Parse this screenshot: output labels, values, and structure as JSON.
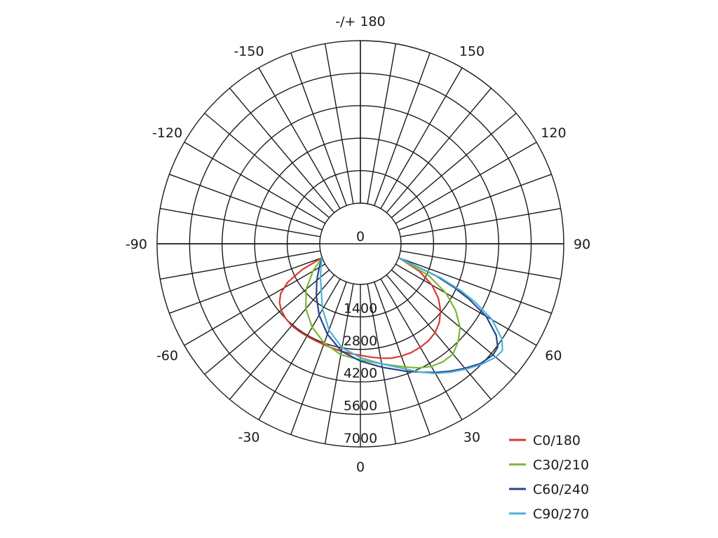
{
  "chart_data": {
    "type": "polar",
    "angle_labels": [
      {
        "angle": 180,
        "text": "-/+ 180"
      },
      {
        "angle": 150,
        "text": "150"
      },
      {
        "angle": -150,
        "text": "-150"
      },
      {
        "angle": 120,
        "text": "120"
      },
      {
        "angle": -120,
        "text": "-120"
      },
      {
        "angle": 90,
        "text": "90"
      },
      {
        "angle": -90,
        "text": "-90"
      },
      {
        "angle": 60,
        "text": "60"
      },
      {
        "angle": -60,
        "text": "-60"
      },
      {
        "angle": 30,
        "text": "30"
      },
      {
        "angle": -30,
        "text": "-30"
      },
      {
        "angle": 0,
        "text": "0"
      }
    ],
    "radial_labels": [
      "0",
      "1400",
      "2800",
      "4200",
      "5600",
      "7000"
    ],
    "radial_max": 7000,
    "spoke_step_deg": 10,
    "series": [
      {
        "name": "C0/180",
        "color": "#d63a32",
        "points": [
          [
            -70,
            20
          ],
          [
            -66,
            1000
          ],
          [
            -62,
            1800
          ],
          [
            -58,
            2300
          ],
          [
            -54,
            2550
          ],
          [
            -50,
            2700
          ],
          [
            -45,
            2800
          ],
          [
            -40,
            2850
          ],
          [
            -35,
            2850
          ],
          [
            -30,
            2850
          ],
          [
            -25,
            2850
          ],
          [
            -20,
            2870
          ],
          [
            -15,
            2900
          ],
          [
            -10,
            2950
          ],
          [
            -5,
            3000
          ],
          [
            0,
            3050
          ],
          [
            5,
            3150
          ],
          [
            10,
            3250
          ],
          [
            15,
            3350
          ],
          [
            20,
            3400
          ],
          [
            25,
            3420
          ],
          [
            30,
            3400
          ],
          [
            35,
            3350
          ],
          [
            40,
            3250
          ],
          [
            45,
            3050
          ],
          [
            50,
            2750
          ],
          [
            55,
            2350
          ],
          [
            60,
            1800
          ],
          [
            65,
            1050
          ],
          [
            70,
            20
          ]
        ]
      },
      {
        "name": "C30/210",
        "color": "#7ab733",
        "points": [
          [
            -70,
            20
          ],
          [
            -60,
            600
          ],
          [
            -50,
            1300
          ],
          [
            -40,
            1900
          ],
          [
            -30,
            2400
          ],
          [
            -20,
            2800
          ],
          [
            -10,
            3100
          ],
          [
            0,
            3250
          ],
          [
            10,
            3500
          ],
          [
            20,
            3900
          ],
          [
            25,
            4150
          ],
          [
            30,
            4350
          ],
          [
            35,
            4450
          ],
          [
            40,
            4450
          ],
          [
            45,
            4200
          ],
          [
            50,
            3850
          ],
          [
            55,
            3250
          ],
          [
            60,
            2500
          ],
          [
            65,
            1500
          ],
          [
            70,
            20
          ]
        ]
      },
      {
        "name": "C60/240",
        "color": "#24478c",
        "points": [
          [
            -70,
            20
          ],
          [
            -60,
            300
          ],
          [
            -50,
            700
          ],
          [
            -40,
            1200
          ],
          [
            -30,
            1800
          ],
          [
            -20,
            2400
          ],
          [
            -10,
            2950
          ],
          [
            0,
            3300
          ],
          [
            10,
            3650
          ],
          [
            20,
            4100
          ],
          [
            25,
            4350
          ],
          [
            30,
            4650
          ],
          [
            35,
            4950
          ],
          [
            40,
            5250
          ],
          [
            45,
            5550
          ],
          [
            50,
            5700
          ],
          [
            53,
            5650
          ],
          [
            56,
            5300
          ],
          [
            60,
            4500
          ],
          [
            63,
            3500
          ],
          [
            65,
            2700
          ],
          [
            67,
            1800
          ],
          [
            70,
            20
          ]
        ]
      },
      {
        "name": "C90/270",
        "color": "#4fb1d9",
        "points": [
          [
            -70,
            20
          ],
          [
            -50,
            500
          ],
          [
            -30,
            1500
          ],
          [
            -20,
            2200
          ],
          [
            -10,
            2800
          ],
          [
            0,
            3150
          ],
          [
            10,
            3500
          ],
          [
            20,
            4000
          ],
          [
            25,
            4350
          ],
          [
            30,
            4700
          ],
          [
            35,
            5000
          ],
          [
            40,
            5300
          ],
          [
            45,
            5600
          ],
          [
            50,
            5850
          ],
          [
            53,
            5900
          ],
          [
            56,
            5600
          ],
          [
            60,
            4800
          ],
          [
            63,
            3800
          ],
          [
            65,
            3000
          ],
          [
            67,
            2000
          ],
          [
            70,
            20
          ]
        ]
      }
    ]
  }
}
